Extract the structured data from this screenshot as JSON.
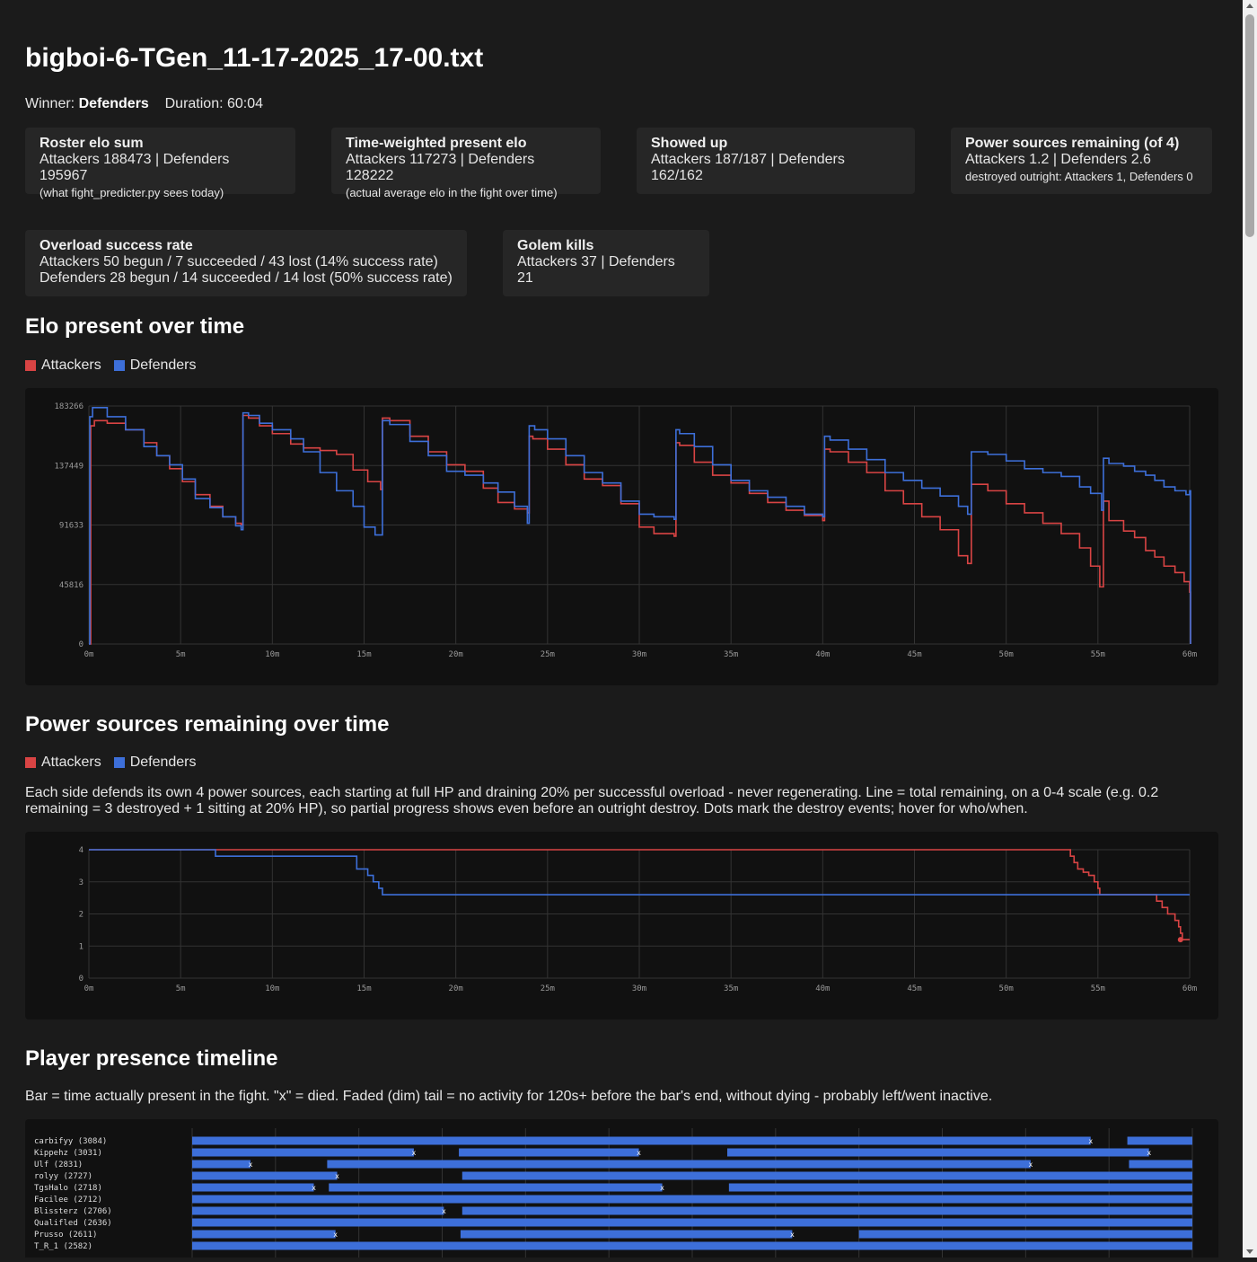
{
  "header": {
    "title": "bigboi-6-TGen_11-17-2025_17-00.txt",
    "winner_label": "Winner:",
    "winner": "Defenders",
    "duration_label": "Duration:",
    "duration": "60:04"
  },
  "cards": [
    {
      "title": "Roster elo sum",
      "lines": [
        "Attackers 188473 | Defenders 195967"
      ],
      "small": "(what fight_predicter.py sees today)"
    },
    {
      "title": "Time-weighted present elo",
      "lines": [
        "Attackers 117273 | Defenders 128222"
      ],
      "small": "(actual average elo in the fight over time)"
    },
    {
      "title": "Showed up",
      "lines": [
        "Attackers 187/187 | Defenders 162/162"
      ],
      "small": ""
    },
    {
      "title": "Power sources remaining (of 4)",
      "lines": [
        "Attackers 1.2 | Defenders 2.6"
      ],
      "small": "destroyed outright: Attackers 1, Defenders 0"
    },
    {
      "title": "Overload success rate",
      "lines": [
        "Attackers 50 begun / 7 succeeded / 43 lost (14% success rate)",
        "Defenders 28 begun / 14 succeeded / 14 lost (50% success rate)"
      ],
      "small": ""
    },
    {
      "title": "Golem kills",
      "lines": [
        "Attackers 37 | Defenders 21"
      ],
      "small": ""
    }
  ],
  "colors": {
    "attackers": "#d94444",
    "defenders": "#3d6fd9",
    "grid": "#333333",
    "axis_text": "#9a9a9a"
  },
  "legend": {
    "attackers": "Attackers",
    "defenders": "Defenders"
  },
  "sections": {
    "elo_title": "Elo present over time",
    "power_title": "Power sources remaining over time",
    "power_desc": "Each side defends its own 4 power sources, each starting at full HP and draining 20% per successful overload - never regenerating. Line = total remaining, on a 0-4 scale (e.g. 0.2 remaining = 3 destroyed + 1 sitting at 20% HP), so partial progress shows even before an outright destroy. Dots mark the destroy events; hover for who/when.",
    "presence_title": "Player presence timeline",
    "presence_desc": "Bar = time actually present in the fight. \"x\" = died. Faded (dim) tail = no activity for 120s+ before the bar's end, without dying - probably left/went inactive."
  },
  "chart_data": [
    {
      "type": "line",
      "title": "Elo present over time",
      "x_unit": "minutes",
      "xlim": [
        0,
        60
      ],
      "ylim": [
        0,
        183266
      ],
      "y_ticks": [
        0,
        45816,
        91633,
        137449,
        183266
      ],
      "x_ticks": [
        "0m",
        "5m",
        "10m",
        "15m",
        "20m",
        "25m",
        "30m",
        "35m",
        "40m",
        "45m",
        "50m",
        "55m",
        "60m"
      ],
      "grid": true,
      "series": [
        {
          "name": "Attackers",
          "color": "#d94444",
          "x": [
            0,
            0.1,
            0.3,
            1.0,
            2.0,
            3.0,
            3.7,
            4.4,
            5.1,
            5.8,
            6.6,
            7.3,
            8.0,
            8.3,
            8.4,
            8.7,
            9.3,
            10.0,
            11.0,
            11.7,
            12.6,
            13.5,
            14.4,
            15.2,
            15.9,
            16.0,
            16.4,
            17.5,
            18.5,
            19.5,
            20.5,
            21.5,
            22.3,
            23.2,
            23.9,
            24.0,
            24.2,
            25.0,
            26.0,
            27.0,
            28.0,
            29.0,
            30.0,
            30.8,
            31.9,
            32.0,
            32.2,
            33.0,
            34.0,
            35.0,
            36.0,
            37.0,
            38.0,
            39.0,
            40.0,
            40.1,
            40.4,
            41.4,
            42.4,
            43.4,
            44.4,
            45.4,
            46.4,
            47.4,
            47.9,
            48.1,
            49.0,
            50.0,
            51.0,
            52.0,
            53.0,
            54.0,
            54.6,
            55.1,
            55.3,
            55.6,
            56.4,
            57.0,
            57.6,
            58.1,
            58.6,
            59.2,
            59.7,
            60.0,
            60.05
          ],
          "y": [
            0,
            168000,
            172000,
            170000,
            165000,
            155000,
            145000,
            135000,
            125000,
            115000,
            106000,
            98000,
            93000,
            92000,
            176000,
            174000,
            168000,
            162000,
            154000,
            151000,
            149000,
            146000,
            134000,
            125000,
            119000,
            174000,
            172000,
            160000,
            148000,
            138000,
            133000,
            120000,
            109000,
            104000,
            101000,
            160000,
            158000,
            150000,
            138000,
            127000,
            122000,
            108000,
            90000,
            85000,
            83000,
            155000,
            153000,
            140000,
            130000,
            124000,
            116000,
            109000,
            103000,
            99000,
            95000,
            150000,
            148000,
            140000,
            132000,
            118000,
            108000,
            98000,
            88000,
            68000,
            62000,
            123000,
            118000,
            108000,
            101000,
            93000,
            85000,
            74000,
            60000,
            44000,
            110000,
            95000,
            87000,
            82000,
            72000,
            67000,
            60000,
            55000,
            48000,
            40000,
            0
          ]
        },
        {
          "name": "Defenders",
          "color": "#3d6fd9",
          "x": [
            0,
            0.05,
            0.2,
            1.0,
            2.0,
            3.0,
            3.7,
            4.4,
            5.1,
            5.8,
            6.6,
            7.3,
            8.0,
            8.3,
            8.4,
            8.7,
            9.3,
            10.0,
            11.0,
            11.7,
            12.6,
            13.5,
            14.4,
            15.0,
            15.6,
            16.0,
            16.4,
            17.5,
            18.5,
            19.5,
            20.5,
            21.5,
            22.3,
            23.2,
            23.9,
            24.0,
            24.3,
            25.0,
            26.0,
            27.0,
            28.0,
            29.0,
            30.0,
            30.8,
            31.9,
            32.0,
            32.2,
            33.0,
            34.0,
            35.0,
            36.0,
            37.0,
            38.0,
            39.0,
            40.0,
            40.1,
            40.4,
            41.4,
            42.4,
            43.4,
            44.4,
            45.4,
            46.4,
            47.4,
            47.9,
            48.1,
            49.0,
            50.0,
            51.0,
            52.0,
            53.0,
            54.0,
            54.6,
            55.2,
            55.3,
            55.6,
            56.4,
            57.0,
            57.6,
            58.1,
            58.6,
            59.2,
            59.8,
            60.0,
            60.05
          ],
          "y": [
            0,
            175000,
            182000,
            175000,
            165000,
            152000,
            145000,
            138000,
            127000,
            112000,
            105000,
            98000,
            91000,
            88000,
            178000,
            176000,
            170000,
            165000,
            158000,
            148000,
            132000,
            118000,
            106000,
            90000,
            84000,
            172000,
            169000,
            156000,
            145000,
            133000,
            130000,
            124000,
            117000,
            106000,
            93000,
            168000,
            165000,
            158000,
            145000,
            132000,
            124000,
            110000,
            100000,
            98000,
            96000,
            165000,
            162000,
            152000,
            138000,
            126000,
            118000,
            113000,
            106000,
            100000,
            98000,
            160000,
            157000,
            150000,
            142000,
            132000,
            126000,
            120000,
            114000,
            106000,
            100000,
            148000,
            146000,
            141000,
            135000,
            132000,
            129000,
            121000,
            116000,
            103000,
            143000,
            139000,
            137000,
            133000,
            130000,
            126000,
            121000,
            118000,
            115000,
            118000,
            0
          ]
        }
      ]
    },
    {
      "type": "line",
      "title": "Power sources remaining over time",
      "x_unit": "minutes",
      "xlim": [
        0,
        60
      ],
      "ylim": [
        0,
        4
      ],
      "y_ticks": [
        0,
        1,
        2,
        3,
        4
      ],
      "x_ticks": [
        "0m",
        "5m",
        "10m",
        "15m",
        "20m",
        "25m",
        "30m",
        "35m",
        "40m",
        "45m",
        "50m",
        "55m",
        "60m"
      ],
      "grid": true,
      "series": [
        {
          "name": "Attackers",
          "color": "#d94444",
          "x": [
            0,
            53.4,
            53.5,
            53.7,
            53.9,
            54.2,
            54.5,
            54.8,
            55.0,
            55.1,
            58.0,
            58.2,
            58.5,
            58.8,
            59.2,
            59.4,
            59.5,
            59.6,
            60.0
          ],
          "y": [
            4,
            4,
            3.8,
            3.6,
            3.4,
            3.3,
            3.2,
            3.0,
            2.8,
            2.6,
            2.6,
            2.4,
            2.2,
            2.0,
            1.8,
            1.6,
            1.4,
            1.2,
            1.2
          ],
          "destroy_x": [
            59.5
          ],
          "destroy_y": [
            1.2
          ]
        },
        {
          "name": "Defenders",
          "color": "#3d6fd9",
          "x": [
            0,
            6.8,
            6.9,
            14.5,
            14.6,
            15.2,
            15.5,
            15.8,
            16.0,
            60.0
          ],
          "y": [
            4,
            4,
            3.8,
            3.8,
            3.4,
            3.2,
            3.0,
            2.8,
            2.6,
            2.6
          ]
        }
      ]
    },
    {
      "type": "table",
      "title": "Player presence timeline",
      "x_unit": "minutes",
      "xlim": [
        0,
        60
      ],
      "players": [
        {
          "name": "carbifyy (3084)",
          "segments": [
            [
              0,
              53.9
            ],
            [
              56.1,
              60
            ]
          ],
          "deaths": [
            53.9
          ]
        },
        {
          "name": "Kippehz (3031)",
          "segments": [
            [
              0,
              13.3
            ],
            [
              16.0,
              26.8
            ],
            [
              32.1,
              57.4
            ]
          ],
          "deaths": [
            13.3,
            26.8,
            57.4
          ]
        },
        {
          "name": "Ulf (2831)",
          "segments": [
            [
              0,
              3.5
            ],
            [
              8.1,
              50.3
            ],
            [
              56.2,
              60
            ]
          ],
          "deaths": [
            3.5,
            50.3
          ]
        },
        {
          "name": "rolyy (2727)",
          "segments": [
            [
              0,
              8.7
            ],
            [
              16.2,
              60
            ]
          ],
          "deaths": [
            8.7
          ]
        },
        {
          "name": "TgsHalo (2718)",
          "segments": [
            [
              0,
              7.3
            ],
            [
              8.2,
              28.2
            ],
            [
              32.2,
              60
            ]
          ],
          "deaths": [
            7.3,
            28.2
          ]
        },
        {
          "name": "Facilee (2712)",
          "segments": [
            [
              0,
              60
            ]
          ],
          "deaths": []
        },
        {
          "name": "Blissterz (2706)",
          "segments": [
            [
              0,
              15.1
            ],
            [
              16.2,
              60
            ]
          ],
          "deaths": [
            15.1
          ]
        },
        {
          "name": "Qualifled (2636)",
          "segments": [
            [
              0,
              60
            ]
          ],
          "deaths": []
        },
        {
          "name": "Prusso (2611)",
          "segments": [
            [
              0,
              8.6
            ],
            [
              16.1,
              36.0
            ],
            [
              40.0,
              60
            ]
          ],
          "deaths": [
            8.6,
            36.0
          ]
        },
        {
          "name": "T_R_1 (2582)",
          "segments": [
            [
              0,
              60
            ]
          ],
          "deaths": []
        }
      ]
    }
  ]
}
